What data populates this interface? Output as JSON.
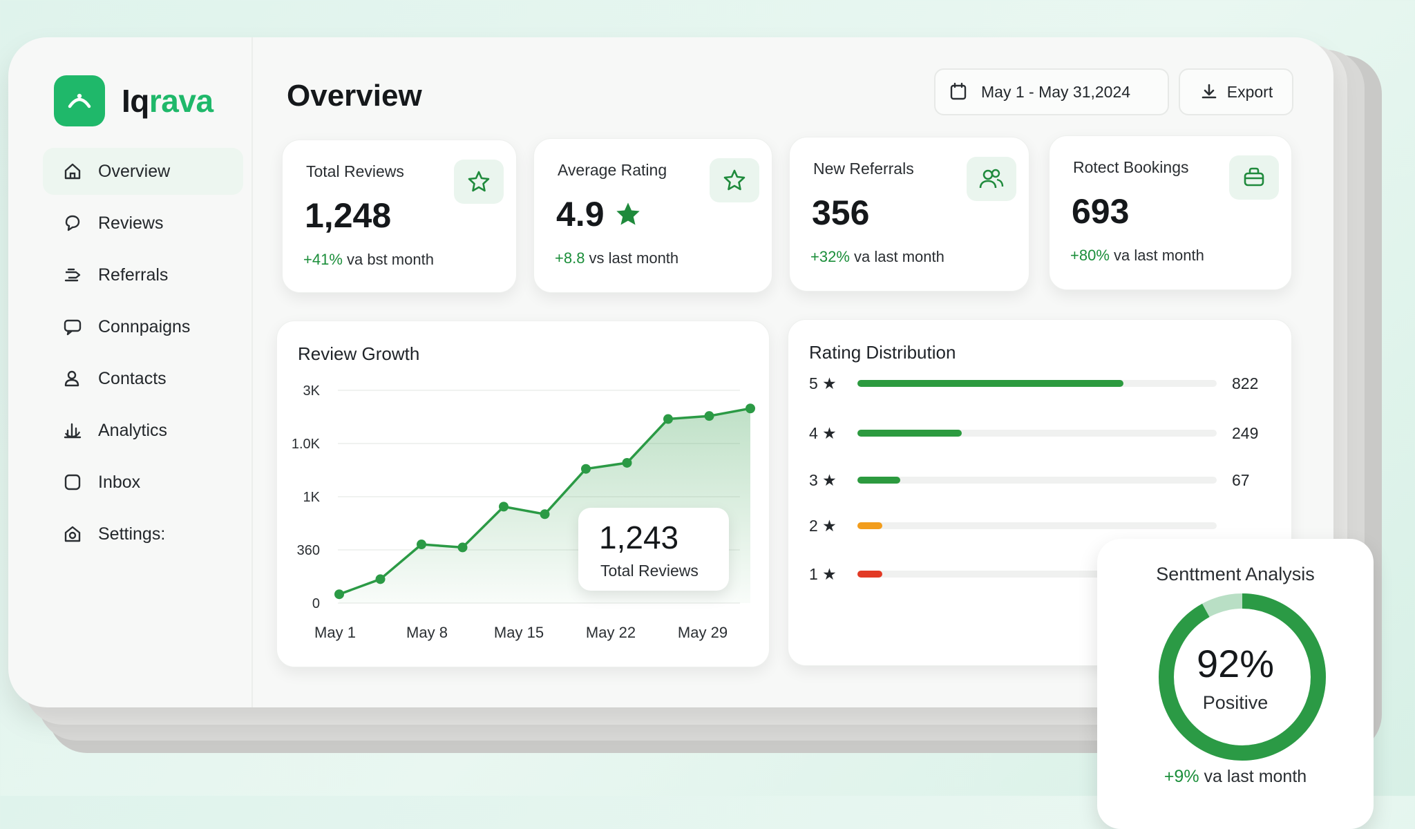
{
  "brand": {
    "name_part1": "Iq",
    "name_part2": "rava"
  },
  "sidebar": {
    "items": [
      {
        "label": "Overview",
        "icon": "home-icon",
        "active": true
      },
      {
        "label": "Reviews",
        "icon": "chat-bubble-icon"
      },
      {
        "label": "Referrals",
        "icon": "handshake-icon"
      },
      {
        "label": "Connpaigns",
        "icon": "message-icon"
      },
      {
        "label": "Contacts",
        "icon": "user-icon"
      },
      {
        "label": "Analytics",
        "icon": "analytics-icon"
      },
      {
        "label": "Inbox",
        "icon": "inbox-icon"
      },
      {
        "label": "Settings:",
        "icon": "settings-icon"
      }
    ]
  },
  "header": {
    "title": "Overview",
    "date_range": "May 1 - May 31,2024",
    "export_label": "Export"
  },
  "stats": [
    {
      "label": "Total Reviews",
      "value": "1,248",
      "delta_value": "+41%",
      "delta_text": " va bst month",
      "icon": "star-outline-icon"
    },
    {
      "label": "Average Rating",
      "value": "4.9",
      "delta_value": "+8.8",
      "delta_text": " vs last month",
      "icon": "star-outline-icon"
    },
    {
      "label": "New Referrals",
      "value": "356",
      "delta_value": "+32%",
      "delta_text": " va last month",
      "icon": "users-icon"
    },
    {
      "label": "Rotect Bookings",
      "value": "693",
      "delta_value": "+80%",
      "delta_text": " va last month",
      "icon": "briefcase-icon"
    }
  ],
  "review_growth": {
    "title": "Review Growth",
    "tooltip_value": "1,243",
    "tooltip_label": "Total Reviews"
  },
  "chart_data": {
    "type": "line",
    "title": "Review Growth",
    "y_ticks": [
      "3K",
      "1.0K",
      "1K",
      "360",
      "0"
    ],
    "x_ticks": [
      "May 1",
      "May 8",
      "May 15",
      "May 22",
      "May 29"
    ],
    "grid": true,
    "series": [
      {
        "values": [
          0.15,
          0.25,
          0.48,
          0.46,
          0.73,
          0.68,
          0.98,
          1.02,
          1.31,
          1.33,
          1.38
        ]
      }
    ],
    "annotation": {
      "value": "1,243",
      "label": "Total Reviews"
    },
    "color": "#2b9a45"
  },
  "rating_distribution": {
    "title": "Rating Distribution",
    "rows": [
      {
        "label": "5",
        "count": "822",
        "fill": 0.74,
        "color": "#2c9a3f"
      },
      {
        "label": "4",
        "count": "249",
        "fill": 0.29,
        "color": "#2c9a3f"
      },
      {
        "label": "3",
        "count": "67",
        "fill": 0.12,
        "color": "#2c9a3f"
      },
      {
        "label": "2",
        "count": "",
        "fill": 0.07,
        "color": "#f29d1c"
      },
      {
        "label": "1",
        "count": "",
        "fill": 0.07,
        "color": "#e23a25"
      }
    ]
  },
  "sentiment": {
    "title": "Senttment Analysis",
    "value": "92%",
    "label": "Positive",
    "percent": 92,
    "delta_value": "+9%",
    "delta_text": " va last month"
  },
  "colors": {
    "accent": "#1fb86a",
    "positive": "#1b8e3a",
    "ring": "#2b9a45",
    "ring_track": "#b9dfc5"
  }
}
